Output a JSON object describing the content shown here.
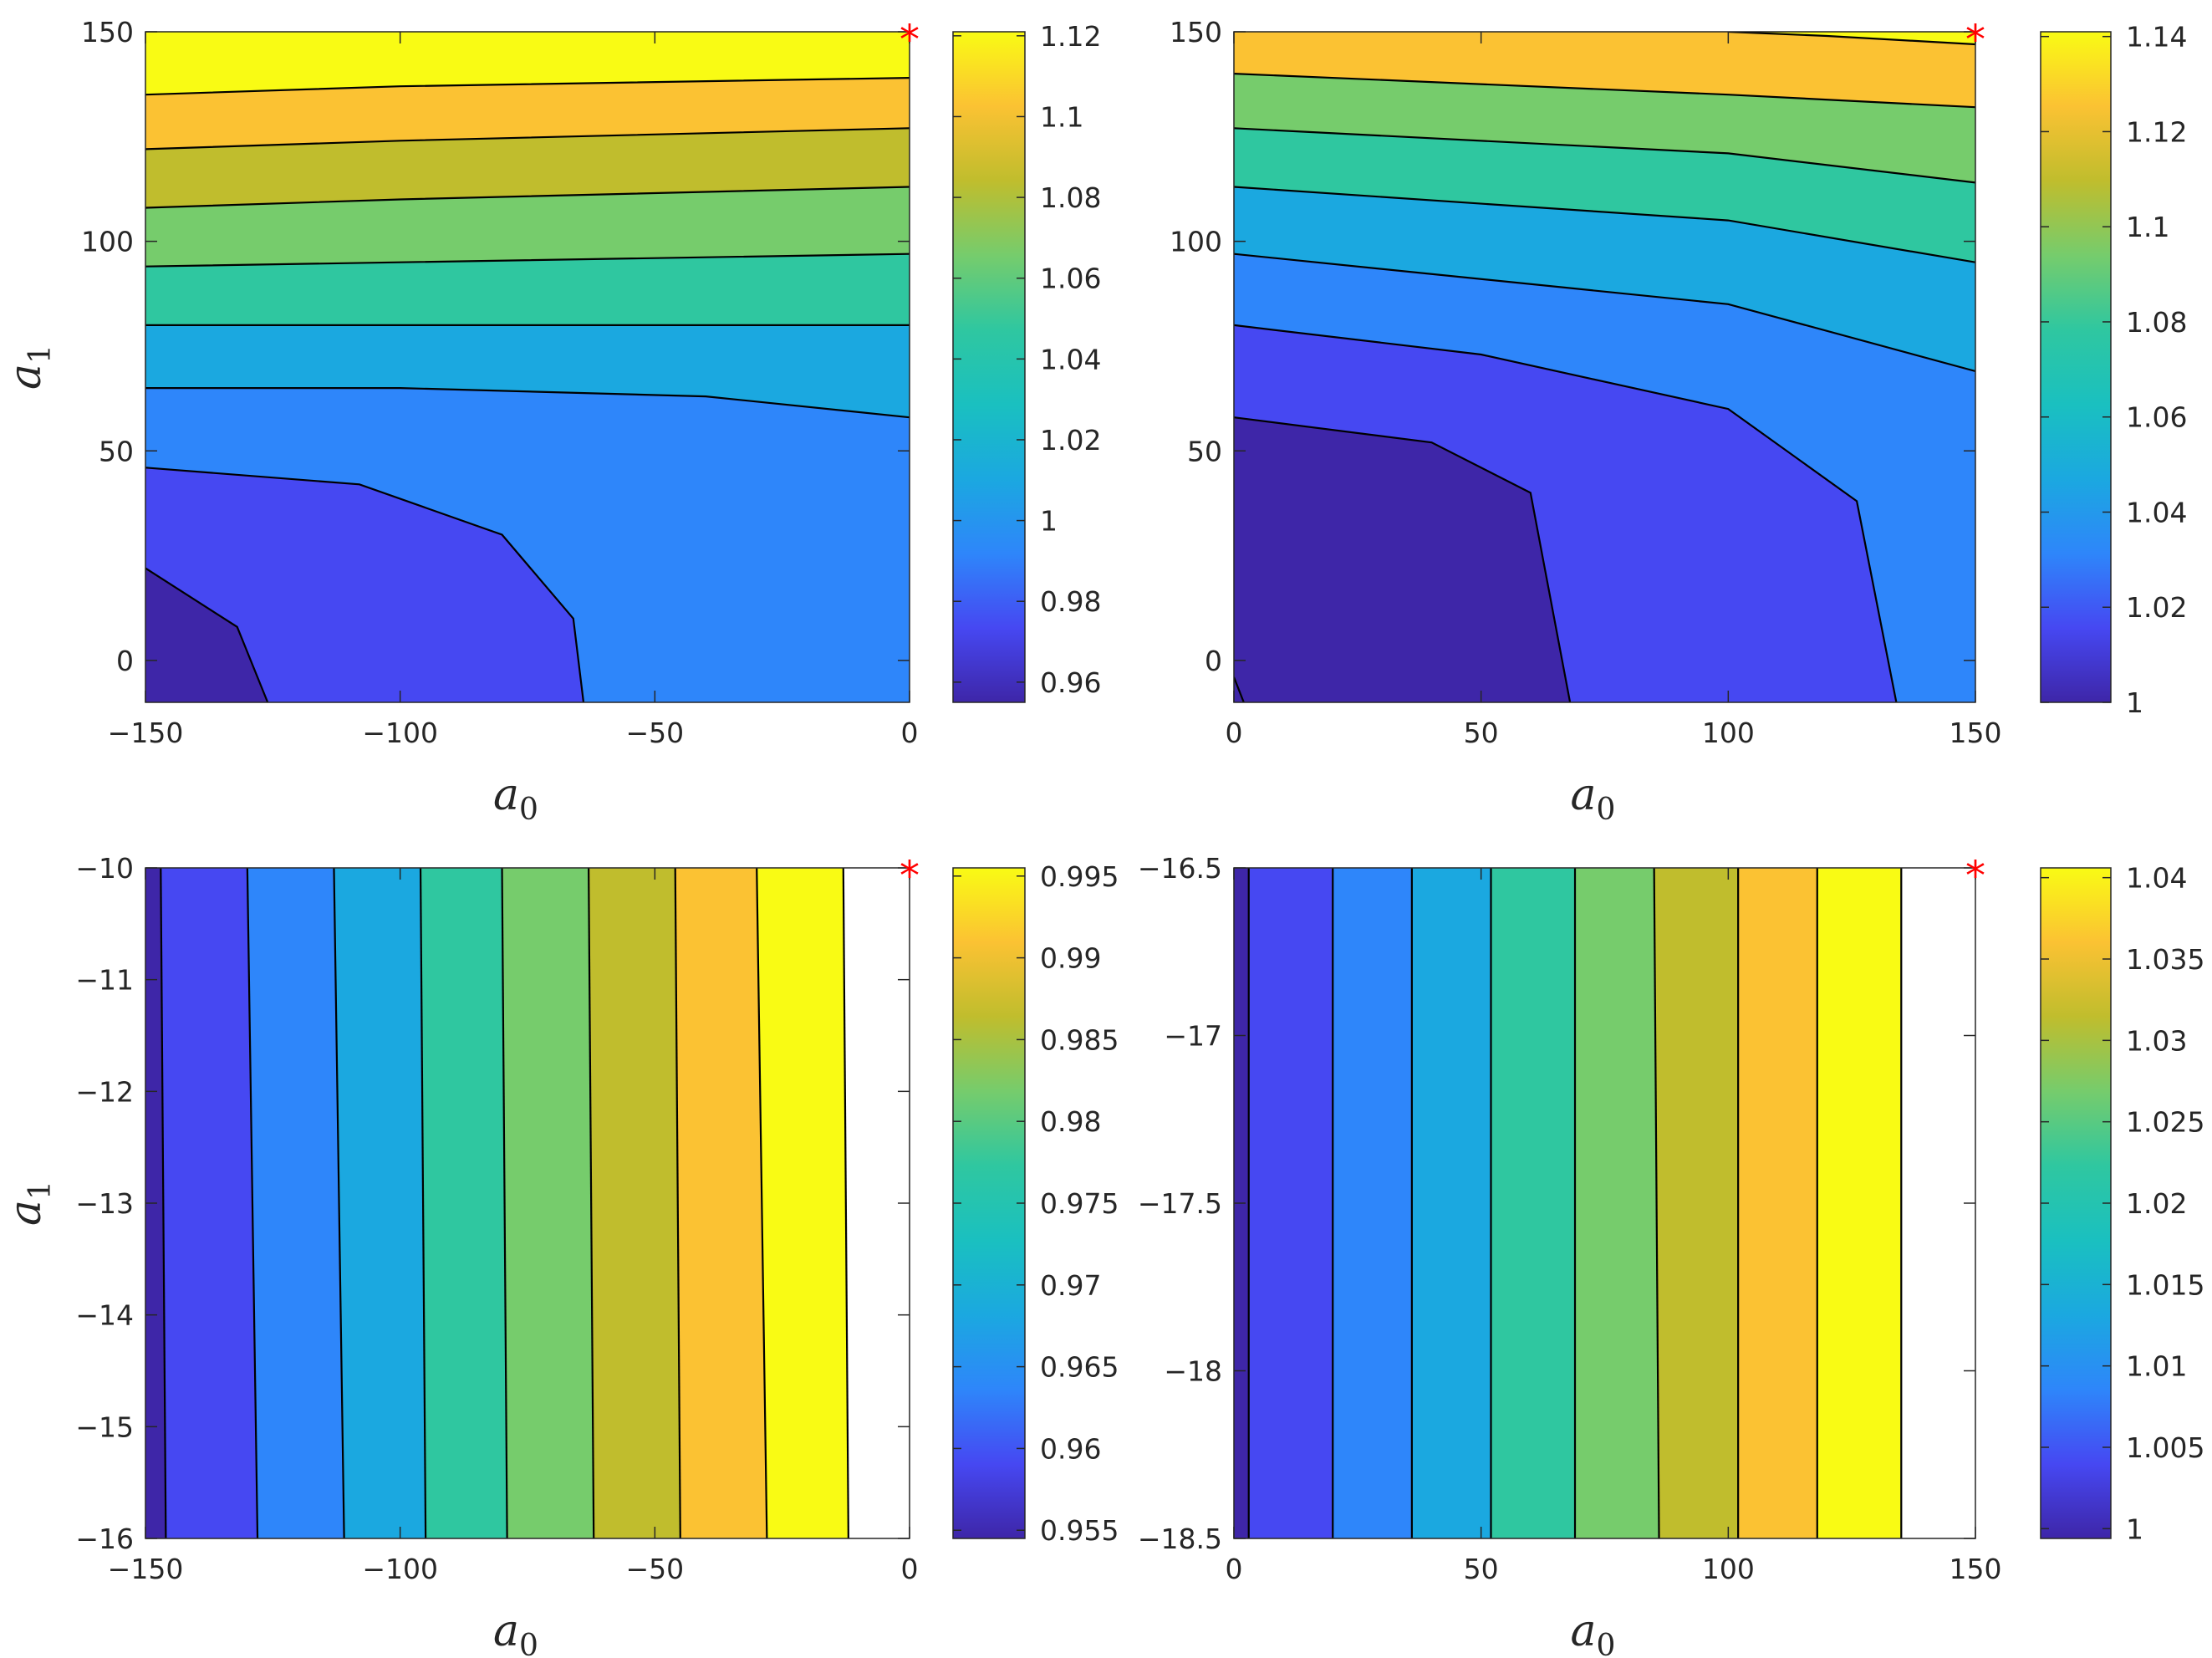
{
  "figure": {
    "description_free": true,
    "colormap_name": "parula",
    "colormap": [
      "#3e26a8",
      "#4648f2",
      "#2e86fa",
      "#1ba8e0",
      "#1ac0c0",
      "#2fc7a0",
      "#76cc6c",
      "#c0bd2d",
      "#fbc233",
      "#f9fb14"
    ],
    "contour_line_color": "#000000",
    "marker_color": "#ff0000",
    "marker_symbol": "*"
  },
  "chart_data": [
    {
      "type": "contour",
      "panel": "top-left",
      "xlabel": "a",
      "xlabel_sub": "0",
      "ylabel": "a",
      "ylabel_sub": "1",
      "xlim": [
        -150,
        0
      ],
      "ylim": [
        -10,
        150
      ],
      "xticks": [
        -150,
        -100,
        -50,
        0
      ],
      "xtick_labels": [
        "−150",
        "−100",
        "−50",
        "0"
      ],
      "yticks": [
        0,
        50,
        100,
        150
      ],
      "ytick_labels": [
        "0",
        "50",
        "100",
        "150"
      ],
      "marker": {
        "x": 0,
        "y": 150
      },
      "colorbar": {
        "range": [
          0.955,
          1.121
        ],
        "ticks": [
          0.96,
          0.98,
          1.0,
          1.02,
          1.04,
          1.06,
          1.08,
          1.1,
          1.12
        ],
        "tick_labels": [
          "0.96",
          "0.98",
          "1",
          "1.02",
          "1.04",
          "1.06",
          "1.08",
          "1.1",
          "1.12"
        ]
      },
      "regions": [
        {
          "color": "#3e26a8",
          "boundary": [
            [
              -150,
              -10
            ],
            [
              -126,
              -10
            ],
            [
              -132,
              8
            ],
            [
              -150,
              22
            ]
          ]
        },
        {
          "color": "#4648f2",
          "boundary": [
            [
              -126,
              -10
            ],
            [
              -64,
              -10
            ],
            [
              -66,
              10
            ],
            [
              -80,
              30
            ],
            [
              -108,
              42
            ],
            [
              -150,
              46
            ],
            [
              -150,
              22
            ],
            [
              -132,
              8
            ]
          ]
        },
        {
          "color": "#2e86fa",
          "boundary": [
            [
              -64,
              -10
            ],
            [
              0,
              -10
            ],
            [
              0,
              58
            ],
            [
              -40,
              63
            ],
            [
              -100,
              65
            ],
            [
              -150,
              65
            ],
            [
              -150,
              46
            ],
            [
              -108,
              42
            ],
            [
              -80,
              30
            ],
            [
              -66,
              10
            ]
          ]
        },
        {
          "color": "#1ba8e0",
          "boundary": [
            [
              0,
              58
            ],
            [
              0,
              80
            ],
            [
              -100,
              80
            ],
            [
              -150,
              80
            ],
            [
              -150,
              65
            ],
            [
              -100,
              65
            ],
            [
              -40,
              63
            ]
          ]
        },
        {
          "color": "#2fc7a0",
          "boundary": [
            [
              0,
              80
            ],
            [
              0,
              97
            ],
            [
              -100,
              95
            ],
            [
              -150,
              94
            ],
            [
              -150,
              80
            ],
            [
              -100,
              80
            ]
          ]
        },
        {
          "color": "#76cc6c",
          "boundary": [
            [
              0,
              97
            ],
            [
              0,
              113
            ],
            [
              -100,
              110
            ],
            [
              -150,
              108
            ],
            [
              -150,
              94
            ],
            [
              -100,
              95
            ]
          ]
        },
        {
          "color": "#c0bd2d",
          "boundary": [
            [
              0,
              113
            ],
            [
              0,
              127
            ],
            [
              -100,
              124
            ],
            [
              -150,
              122
            ],
            [
              -150,
              108
            ],
            [
              -100,
              110
            ]
          ]
        },
        {
          "color": "#fbc233",
          "boundary": [
            [
              0,
              127
            ],
            [
              0,
              139
            ],
            [
              -100,
              137
            ],
            [
              -150,
              135
            ],
            [
              -150,
              122
            ],
            [
              -100,
              124
            ]
          ]
        },
        {
          "color": "#f9fb14",
          "boundary": [
            [
              0,
              139
            ],
            [
              0,
              150
            ],
            [
              -150,
              150
            ],
            [
              -150,
              135
            ],
            [
              -100,
              137
            ]
          ]
        }
      ],
      "contour_lines": [
        [
          [
            -150,
            22
          ],
          [
            -132,
            8
          ],
          [
            -126,
            -10
          ]
        ],
        [
          [
            -150,
            46
          ],
          [
            -108,
            42
          ],
          [
            -80,
            30
          ],
          [
            -66,
            10
          ],
          [
            -64,
            -10
          ]
        ],
        [
          [
            -150,
            65
          ],
          [
            -100,
            65
          ],
          [
            -40,
            63
          ],
          [
            0,
            58
          ]
        ],
        [
          [
            -150,
            80
          ],
          [
            -100,
            80
          ],
          [
            0,
            80
          ]
        ],
        [
          [
            -150,
            94
          ],
          [
            -100,
            95
          ],
          [
            0,
            97
          ]
        ],
        [
          [
            -150,
            108
          ],
          [
            -100,
            110
          ],
          [
            0,
            113
          ]
        ],
        [
          [
            -150,
            122
          ],
          [
            -100,
            124
          ],
          [
            0,
            127
          ]
        ],
        [
          [
            -150,
            135
          ],
          [
            -100,
            137
          ],
          [
            0,
            139
          ]
        ]
      ]
    },
    {
      "type": "contour",
      "panel": "top-right",
      "xlabel": "a",
      "xlabel_sub": "0",
      "ylabel": "",
      "ylabel_sub": "",
      "xlim": [
        0,
        150
      ],
      "ylim": [
        -10,
        150
      ],
      "xticks": [
        0,
        50,
        100,
        150
      ],
      "xtick_labels": [
        "0",
        "50",
        "100",
        "150"
      ],
      "yticks": [
        0,
        50,
        100,
        150
      ],
      "ytick_labels": [
        "0",
        "50",
        "100",
        "150"
      ],
      "marker": {
        "x": 150,
        "y": 150
      },
      "colorbar": {
        "range": [
          1.0,
          1.141
        ],
        "ticks": [
          1.0,
          1.02,
          1.04,
          1.06,
          1.08,
          1.1,
          1.12,
          1.14
        ],
        "tick_labels": [
          "1",
          "1.02",
          "1.04",
          "1.06",
          "1.08",
          "1.1",
          "1.12",
          "1.14"
        ]
      },
      "regions": [
        {
          "color": "#3e26a8",
          "boundary": [
            [
              0,
              -10
            ],
            [
              68,
              -10
            ],
            [
              60,
              40
            ],
            [
              40,
              52
            ],
            [
              0,
              58
            ]
          ]
        },
        {
          "color": "#4648f2",
          "boundary": [
            [
              0,
              58
            ],
            [
              40,
              52
            ],
            [
              60,
              40
            ],
            [
              68,
              -10
            ],
            [
              134,
              -10
            ],
            [
              126,
              38
            ],
            [
              100,
              60
            ],
            [
              50,
              73
            ],
            [
              0,
              80
            ]
          ]
        },
        {
          "color": "#2e86fa",
          "boundary": [
            [
              0,
              80
            ],
            [
              50,
              73
            ],
            [
              100,
              60
            ],
            [
              126,
              38
            ],
            [
              134,
              -10
            ],
            [
              150,
              -10
            ],
            [
              150,
              69
            ],
            [
              100,
              85
            ],
            [
              0,
              97
            ]
          ]
        },
        {
          "color": "#1ba8e0",
          "boundary": [
            [
              0,
              97
            ],
            [
              100,
              85
            ],
            [
              150,
              69
            ],
            [
              150,
              95
            ],
            [
              100,
              105
            ],
            [
              0,
              113
            ]
          ]
        },
        {
          "color": "#2fc7a0",
          "boundary": [
            [
              0,
              113
            ],
            [
              100,
              105
            ],
            [
              150,
              95
            ],
            [
              150,
              114
            ],
            [
              100,
              121
            ],
            [
              0,
              127
            ]
          ]
        },
        {
          "color": "#76cc6c",
          "boundary": [
            [
              0,
              127
            ],
            [
              100,
              121
            ],
            [
              150,
              114
            ],
            [
              150,
              132
            ],
            [
              100,
              135
            ],
            [
              0,
              140
            ]
          ]
        },
        {
          "color": "#fbc233",
          "boundary": [
            [
              0,
              140
            ],
            [
              100,
              135
            ],
            [
              150,
              132
            ],
            [
              150,
              147
            ],
            [
              120,
              149
            ],
            [
              100,
              150
            ],
            [
              0,
              150
            ]
          ]
        },
        {
          "color": "#f9fb14",
          "boundary": [
            [
              100,
              150
            ],
            [
              150,
              150
            ],
            [
              150,
              147
            ],
            [
              120,
              149
            ]
          ]
        }
      ],
      "contour_lines": [
        [
          [
            0,
            58
          ],
          [
            40,
            52
          ],
          [
            60,
            40
          ],
          [
            68,
            -10
          ]
        ],
        [
          [
            0,
            80
          ],
          [
            50,
            73
          ],
          [
            100,
            60
          ],
          [
            126,
            38
          ],
          [
            134,
            -10
          ]
        ],
        [
          [
            0,
            97
          ],
          [
            100,
            85
          ],
          [
            150,
            69
          ]
        ],
        [
          [
            0,
            113
          ],
          [
            100,
            105
          ],
          [
            150,
            95
          ]
        ],
        [
          [
            0,
            127
          ],
          [
            100,
            121
          ],
          [
            150,
            114
          ]
        ],
        [
          [
            0,
            140
          ],
          [
            100,
            135
          ],
          [
            150,
            132
          ]
        ],
        [
          [
            100,
            150
          ],
          [
            120,
            149
          ],
          [
            150,
            147
          ]
        ],
        [
          [
            0,
            -4
          ],
          [
            2,
            -10
          ]
        ]
      ]
    },
    {
      "type": "contour",
      "panel": "bottom-left",
      "xlabel": "a",
      "xlabel_sub": "0",
      "ylabel": "a",
      "ylabel_sub": "1",
      "xlim": [
        -150,
        0
      ],
      "ylim": [
        -16,
        -10
      ],
      "xticks": [
        -150,
        -100,
        -50,
        0
      ],
      "xtick_labels": [
        "−150",
        "−100",
        "−50",
        "0"
      ],
      "yticks": [
        -16,
        -15,
        -14,
        -13,
        -12,
        -11,
        -10
      ],
      "ytick_labels": [
        "−16",
        "−15",
        "−14",
        "−13",
        "−12",
        "−11",
        "−10"
      ],
      "marker": {
        "x": 0,
        "y": -10
      },
      "colorbar": {
        "range": [
          0.9545,
          0.9955
        ],
        "ticks": [
          0.955,
          0.96,
          0.965,
          0.97,
          0.975,
          0.98,
          0.985,
          0.99,
          0.995
        ],
        "tick_labels": [
          "0.955",
          "0.96",
          "0.965",
          "0.97",
          "0.975",
          "0.98",
          "0.985",
          "0.99",
          "0.995"
        ]
      },
      "vertical_boundaries": {
        "top": [
          -147,
          -130,
          -113,
          -96,
          -80,
          -63,
          -46,
          -30,
          -13
        ],
        "bottom": [
          -146,
          -128,
          -111,
          -95,
          -79,
          -62,
          -45,
          -28,
          -12
        ]
      },
      "regions_colors": [
        "#3e26a8",
        "#4648f2",
        "#2e86fa",
        "#1ba8e0",
        "#2fc7a0",
        "#76cc6c",
        "#c0bd2d",
        "#fbc233",
        "#f9fb14"
      ]
    },
    {
      "type": "contour",
      "panel": "bottom-right",
      "xlabel": "a",
      "xlabel_sub": "0",
      "ylabel": "",
      "ylabel_sub": "",
      "xlim": [
        0,
        150
      ],
      "ylim": [
        -18.5,
        -16.5
      ],
      "xticks": [
        0,
        50,
        100,
        150
      ],
      "xtick_labels": [
        "0",
        "50",
        "100",
        "150"
      ],
      "yticks": [
        -18.5,
        -18,
        -17.5,
        -17,
        -16.5
      ],
      "ytick_labels": [
        "−18.5",
        "−18",
        "−17.5",
        "−17",
        "−16.5"
      ],
      "marker": {
        "x": 150,
        "y": -16.5
      },
      "colorbar": {
        "range": [
          0.9994,
          1.0406
        ],
        "ticks": [
          1.0,
          1.005,
          1.01,
          1.015,
          1.02,
          1.025,
          1.03,
          1.035,
          1.04
        ],
        "tick_labels": [
          "1",
          "1.005",
          "1.01",
          "1.015",
          "1.02",
          "1.025",
          "1.03",
          "1.035",
          "1.04"
        ]
      },
      "vertical_boundaries": {
        "top": [
          3,
          20,
          36,
          52,
          69,
          85,
          102,
          118,
          135
        ],
        "bottom": [
          3,
          20,
          36,
          52,
          69,
          86,
          102,
          118,
          135
        ]
      },
      "regions_colors": [
        "#3e26a8",
        "#4648f2",
        "#2e86fa",
        "#1ba8e0",
        "#2fc7a0",
        "#76cc6c",
        "#c0bd2d",
        "#fbc233",
        "#f9fb14"
      ]
    }
  ]
}
